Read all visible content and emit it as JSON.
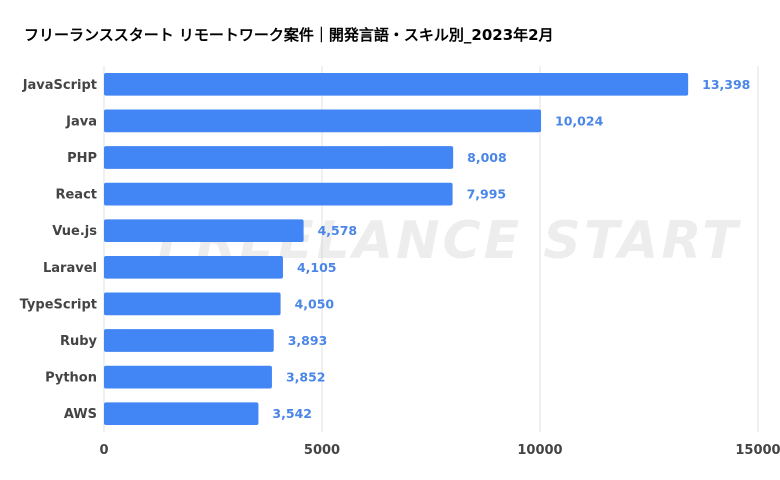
{
  "chart_data": {
    "type": "bar",
    "orientation": "horizontal",
    "title": "フリーランススタート リモートワーク案件｜開発言語・スキル別_2023年2月",
    "categories": [
      "JavaScript",
      "Java",
      "PHP",
      "React",
      "Vue.js",
      "Laravel",
      "TypeScript",
      "Ruby",
      "Python",
      "AWS"
    ],
    "values": [
      13398,
      10024,
      8008,
      7995,
      4578,
      4105,
      4050,
      3893,
      3852,
      3542
    ],
    "value_labels": [
      "13,398",
      "10,024",
      "8,008",
      "7,995",
      "4,578",
      "4,105",
      "4,050",
      "3,893",
      "3,852",
      "3,542"
    ],
    "xlim": [
      0,
      15000
    ],
    "xticks": [
      0,
      5000,
      10000,
      15000
    ],
    "xtick_labels": [
      "0",
      "5000",
      "10000",
      "15000"
    ],
    "grid": "vertical",
    "legend": "none",
    "watermark": "FREELANCE START",
    "colors": {
      "bar": "#4285f4",
      "value_label": "#4a86e8",
      "grid": "#e0e0e0"
    }
  }
}
